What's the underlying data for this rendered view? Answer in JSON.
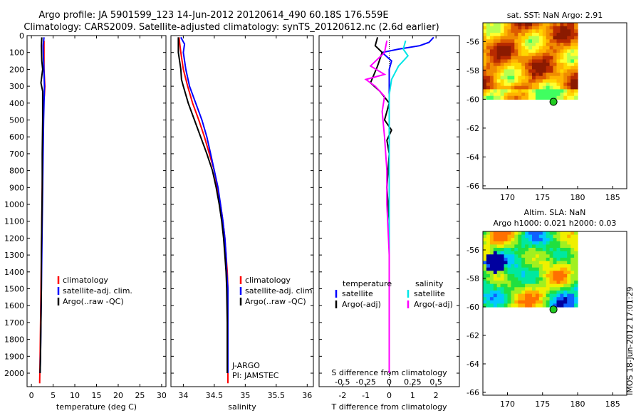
{
  "header": {
    "line1": "Argo profile: JA 5901599_123 14-Jun-2012 20120614_490 60.18S 176.559E",
    "line2": "Climatology: CARS2009. Satellite-adjusted climatology: synTS_20120612.nc (2.6d earlier)"
  },
  "colors": {
    "climatology": "#ff0000",
    "satellite": "#0000ff",
    "argo": "#000000",
    "sat_salinity": "#00e6e6",
    "argo_salinity_diff": "#ff00ff"
  },
  "chart_data": [
    {
      "type": "line",
      "panel": "temperature",
      "xlabel": "temperature (deg C)",
      "ylabel": "",
      "xlim": [
        -1,
        31
      ],
      "ylim": [
        2080,
        0
      ],
      "xticks": [
        0,
        5,
        10,
        15,
        20,
        25,
        30
      ],
      "yticks": [
        0,
        100,
        200,
        300,
        400,
        500,
        600,
        700,
        800,
        900,
        1000,
        1100,
        1200,
        1300,
        1400,
        1500,
        1600,
        1700,
        1800,
        1900,
        2000
      ],
      "legend": [
        "climatology",
        "satellite-adj. clim.",
        "Argo(..raw -QC)"
      ],
      "series": [
        {
          "name": "climatology",
          "color": "#ff0000",
          "points": [
            [
              2.9,
              30
            ],
            [
              2.9,
              100
            ],
            [
              2.9,
              200
            ],
            [
              3.0,
              250
            ],
            [
              3.1,
              300
            ],
            [
              3.0,
              350
            ],
            [
              2.8,
              400
            ],
            [
              2.7,
              500
            ],
            [
              2.6,
              700
            ],
            [
              2.5,
              900
            ],
            [
              2.4,
              1100
            ],
            [
              2.3,
              1300
            ],
            [
              2.2,
              1500
            ],
            [
              2.1,
              1700
            ],
            [
              2.0,
              1900
            ],
            [
              1.9,
              2060
            ]
          ]
        },
        {
          "name": "satellite-adj. clim.",
          "color": "#0000ff",
          "points": [
            [
              2.9,
              10
            ],
            [
              2.7,
              60
            ],
            [
              2.8,
              150
            ],
            [
              2.9,
              220
            ],
            [
              3.0,
              300
            ],
            [
              2.9,
              400
            ],
            [
              2.8,
              500
            ],
            [
              2.7,
              700
            ],
            [
              2.6,
              900
            ],
            [
              2.5,
              1100
            ],
            [
              2.4,
              1300
            ],
            [
              2.3,
              1500
            ],
            [
              2.2,
              1700
            ],
            [
              2.1,
              1900
            ],
            [
              2.0,
              2000
            ]
          ]
        },
        {
          "name": "Argo(..raw -QC)",
          "color": "#000000",
          "points": [
            [
              2.4,
              10
            ],
            [
              2.3,
              60
            ],
            [
              2.4,
              150
            ],
            [
              2.6,
              200
            ],
            [
              2.2,
              280
            ],
            [
              2.6,
              330
            ],
            [
              2.6,
              400
            ],
            [
              2.6,
              500
            ],
            [
              2.5,
              700
            ],
            [
              2.5,
              900
            ],
            [
              2.4,
              1100
            ],
            [
              2.3,
              1300
            ],
            [
              2.3,
              1500
            ],
            [
              2.2,
              1700
            ],
            [
              2.1,
              1900
            ],
            [
              2.0,
              2000
            ]
          ]
        }
      ]
    },
    {
      "type": "line",
      "panel": "salinity",
      "xlabel": "salinity",
      "ylabel": "",
      "xlim": [
        33.8,
        36.1
      ],
      "ylim": [
        2080,
        0
      ],
      "xticks": [
        34,
        34.5,
        35,
        35.5,
        36
      ],
      "legend": [
        "climatology",
        "satellite-adj. clim.",
        "Argo(..raw -QC)"
      ],
      "annotations": [
        "J-ARGO",
        "PI: JAMSTEC"
      ],
      "series": [
        {
          "name": "climatology",
          "color": "#ff0000",
          "points": [
            [
              33.93,
              10
            ],
            [
              33.96,
              100
            ],
            [
              34.0,
              200
            ],
            [
              34.07,
              300
            ],
            [
              34.15,
              400
            ],
            [
              34.25,
              500
            ],
            [
              34.34,
              600
            ],
            [
              34.42,
              700
            ],
            [
              34.5,
              800
            ],
            [
              34.55,
              900
            ],
            [
              34.6,
              1000
            ],
            [
              34.64,
              1100
            ],
            [
              34.67,
              1200
            ],
            [
              34.69,
              1300
            ],
            [
              34.71,
              1400
            ],
            [
              34.72,
              1500
            ],
            [
              34.72,
              1700
            ],
            [
              34.72,
              1900
            ],
            [
              34.72,
              2060
            ]
          ]
        },
        {
          "name": "satellite-adj. clim.",
          "color": "#0000ff",
          "points": [
            [
              33.96,
              10
            ],
            [
              34.02,
              50
            ],
            [
              34.0,
              100
            ],
            [
              34.04,
              200
            ],
            [
              34.1,
              300
            ],
            [
              34.2,
              400
            ],
            [
              34.3,
              500
            ],
            [
              34.38,
              600
            ],
            [
              34.44,
              700
            ],
            [
              34.5,
              800
            ],
            [
              34.56,
              900
            ],
            [
              34.6,
              1000
            ],
            [
              34.64,
              1100
            ],
            [
              34.67,
              1200
            ],
            [
              34.69,
              1300
            ],
            [
              34.7,
              1400
            ],
            [
              34.72,
              1500
            ],
            [
              34.72,
              1700
            ],
            [
              34.72,
              1900
            ],
            [
              34.72,
              2000
            ]
          ]
        },
        {
          "name": "Argo(..raw -QC)",
          "color": "#000000",
          "points": [
            [
              33.92,
              10
            ],
            [
              33.92,
              100
            ],
            [
              33.96,
              200
            ],
            [
              33.97,
              260
            ],
            [
              34.0,
              300
            ],
            [
              34.08,
              400
            ],
            [
              34.18,
              500
            ],
            [
              34.28,
              600
            ],
            [
              34.38,
              700
            ],
            [
              34.47,
              800
            ],
            [
              34.53,
              900
            ],
            [
              34.58,
              1000
            ],
            [
              34.62,
              1100
            ],
            [
              34.65,
              1200
            ],
            [
              34.67,
              1300
            ],
            [
              34.69,
              1400
            ],
            [
              34.7,
              1500
            ],
            [
              34.71,
              1700
            ],
            [
              34.71,
              1900
            ],
            [
              34.71,
              2000
            ]
          ]
        }
      ]
    },
    {
      "type": "line",
      "panel": "difference",
      "xlabel": "T difference from climatology",
      "xlabel_top": "S difference from climatology",
      "xlim": [
        -3,
        3
      ],
      "ylim": [
        2080,
        0
      ],
      "xticks": [
        -2,
        -1,
        0,
        1,
        2
      ],
      "xticks_s_labels": [
        "-0.5",
        "-0.25",
        "0",
        "0.25",
        "0.5"
      ],
      "xticks_s_values": [
        -2,
        -1,
        0,
        1,
        2
      ],
      "legend_headers": [
        "temperature",
        "salinity"
      ],
      "legend": [
        "satellite",
        "Argo(-adj)",
        "satellite",
        "Argo(-adj)"
      ],
      "series": [
        {
          "name": "satellite",
          "group": "temperature",
          "color": "#0000ff",
          "points": [
            [
              1.9,
              10
            ],
            [
              1.7,
              40
            ],
            [
              1.3,
              60
            ],
            [
              0.4,
              80
            ],
            [
              -0.3,
              100
            ],
            [
              0.1,
              150
            ],
            [
              0.0,
              200
            ],
            [
              0.0,
              300
            ],
            [
              0.0,
              500
            ],
            [
              0.0,
              700
            ],
            [
              0.0,
              900
            ],
            [
              0.0,
              1100
            ],
            [
              0.0,
              1300
            ],
            [
              0.0,
              1500
            ],
            [
              0.0,
              1700
            ],
            [
              0.0,
              1900
            ],
            [
              0.0,
              2000
            ]
          ]
        },
        {
          "name": "Argo(-adj)",
          "group": "temperature",
          "color": "#000000",
          "points": [
            [
              -0.5,
              10
            ],
            [
              -0.6,
              60
            ],
            [
              -0.3,
              100
            ],
            [
              -0.5,
              180
            ],
            [
              -0.8,
              280
            ],
            [
              -0.4,
              330
            ],
            [
              0.0,
              400
            ],
            [
              -0.2,
              500
            ],
            [
              0.1,
              560
            ],
            [
              -0.1,
              620
            ],
            [
              0.0,
              700
            ],
            [
              -0.1,
              900
            ],
            [
              0.0,
              1100
            ],
            [
              0.0,
              1300
            ],
            [
              0.0,
              1500
            ],
            [
              0.0,
              1700
            ],
            [
              0.0,
              1900
            ],
            [
              0.0,
              2000
            ]
          ]
        },
        {
          "name": "satellite",
          "group": "salinity",
          "color": "#00e6e6",
          "points": [
            [
              0.7,
              30
            ],
            [
              0.6,
              80
            ],
            [
              0.8,
              120
            ],
            [
              0.4,
              180
            ],
            [
              0.1,
              260
            ],
            [
              0.0,
              350
            ],
            [
              0.0,
              600
            ],
            [
              0.0,
              1000
            ],
            [
              0.0,
              1500
            ],
            [
              0.0,
              2000
            ]
          ]
        },
        {
          "name": "Argo(-adj)",
          "group": "salinity",
          "color": "#ff00ff",
          "points": [
            [
              -0.1,
              30
            ],
            [
              -0.2,
              100
            ],
            [
              -0.8,
              180
            ],
            [
              -0.2,
              230
            ],
            [
              -1.0,
              260
            ],
            [
              -0.6,
              300
            ],
            [
              -0.2,
              360
            ],
            [
              -0.3,
              450
            ],
            [
              -0.2,
              600
            ],
            [
              -0.1,
              800
            ],
            [
              -0.1,
              1000
            ],
            [
              0.0,
              1300
            ],
            [
              0.0,
              1600
            ],
            [
              0.0,
              2000
            ]
          ]
        }
      ]
    },
    {
      "type": "heatmap",
      "panel": "sst-map",
      "title": "sat. SST: NaN Argo: 2.91",
      "xlim": [
        166.5,
        187
      ],
      "ylim": [
        -66.2,
        -54.7
      ],
      "xticks": [
        170,
        175,
        180,
        185
      ],
      "yticks": [
        -56,
        -58,
        -60,
        -62,
        -64,
        -66
      ],
      "data_extent": {
        "lon": [
          166.5,
          180
        ],
        "lat": [
          -60,
          -54.7
        ]
      },
      "marker": {
        "lon": 176.559,
        "lat": -60.18,
        "color": "#22cc22"
      },
      "palette": [
        "#8b1a00",
        "#b82a00",
        "#dd5a00",
        "#f08c00",
        "#ffb400",
        "#ffd700",
        "#ffff30",
        "#b8ff50",
        "#40ff60"
      ]
    },
    {
      "type": "heatmap",
      "panel": "sla-map",
      "title": "Altim. SLA: NaN",
      "subtitle": "Argo h1000: 0.021 h2000: 0.03",
      "xlim": [
        166.5,
        187
      ],
      "ylim": [
        -66.2,
        -54.7
      ],
      "xticks": [
        170,
        175,
        180,
        185
      ],
      "yticks": [
        -56,
        -58,
        -60,
        -62,
        -64,
        -66
      ],
      "data_extent": {
        "lon": [
          166.5,
          180
        ],
        "lat": [
          -60,
          -54.7
        ]
      },
      "marker": {
        "lon": 176.559,
        "lat": -60.18,
        "color": "#22cc22"
      },
      "palette": [
        "#0000a0",
        "#1060ff",
        "#00c8ff",
        "#00e8a0",
        "#20e040",
        "#a0f020",
        "#f0f000",
        "#ffb000",
        "#ff7000"
      ]
    }
  ],
  "side_label": "IMOS 18-Jun-2012 17:01:29"
}
